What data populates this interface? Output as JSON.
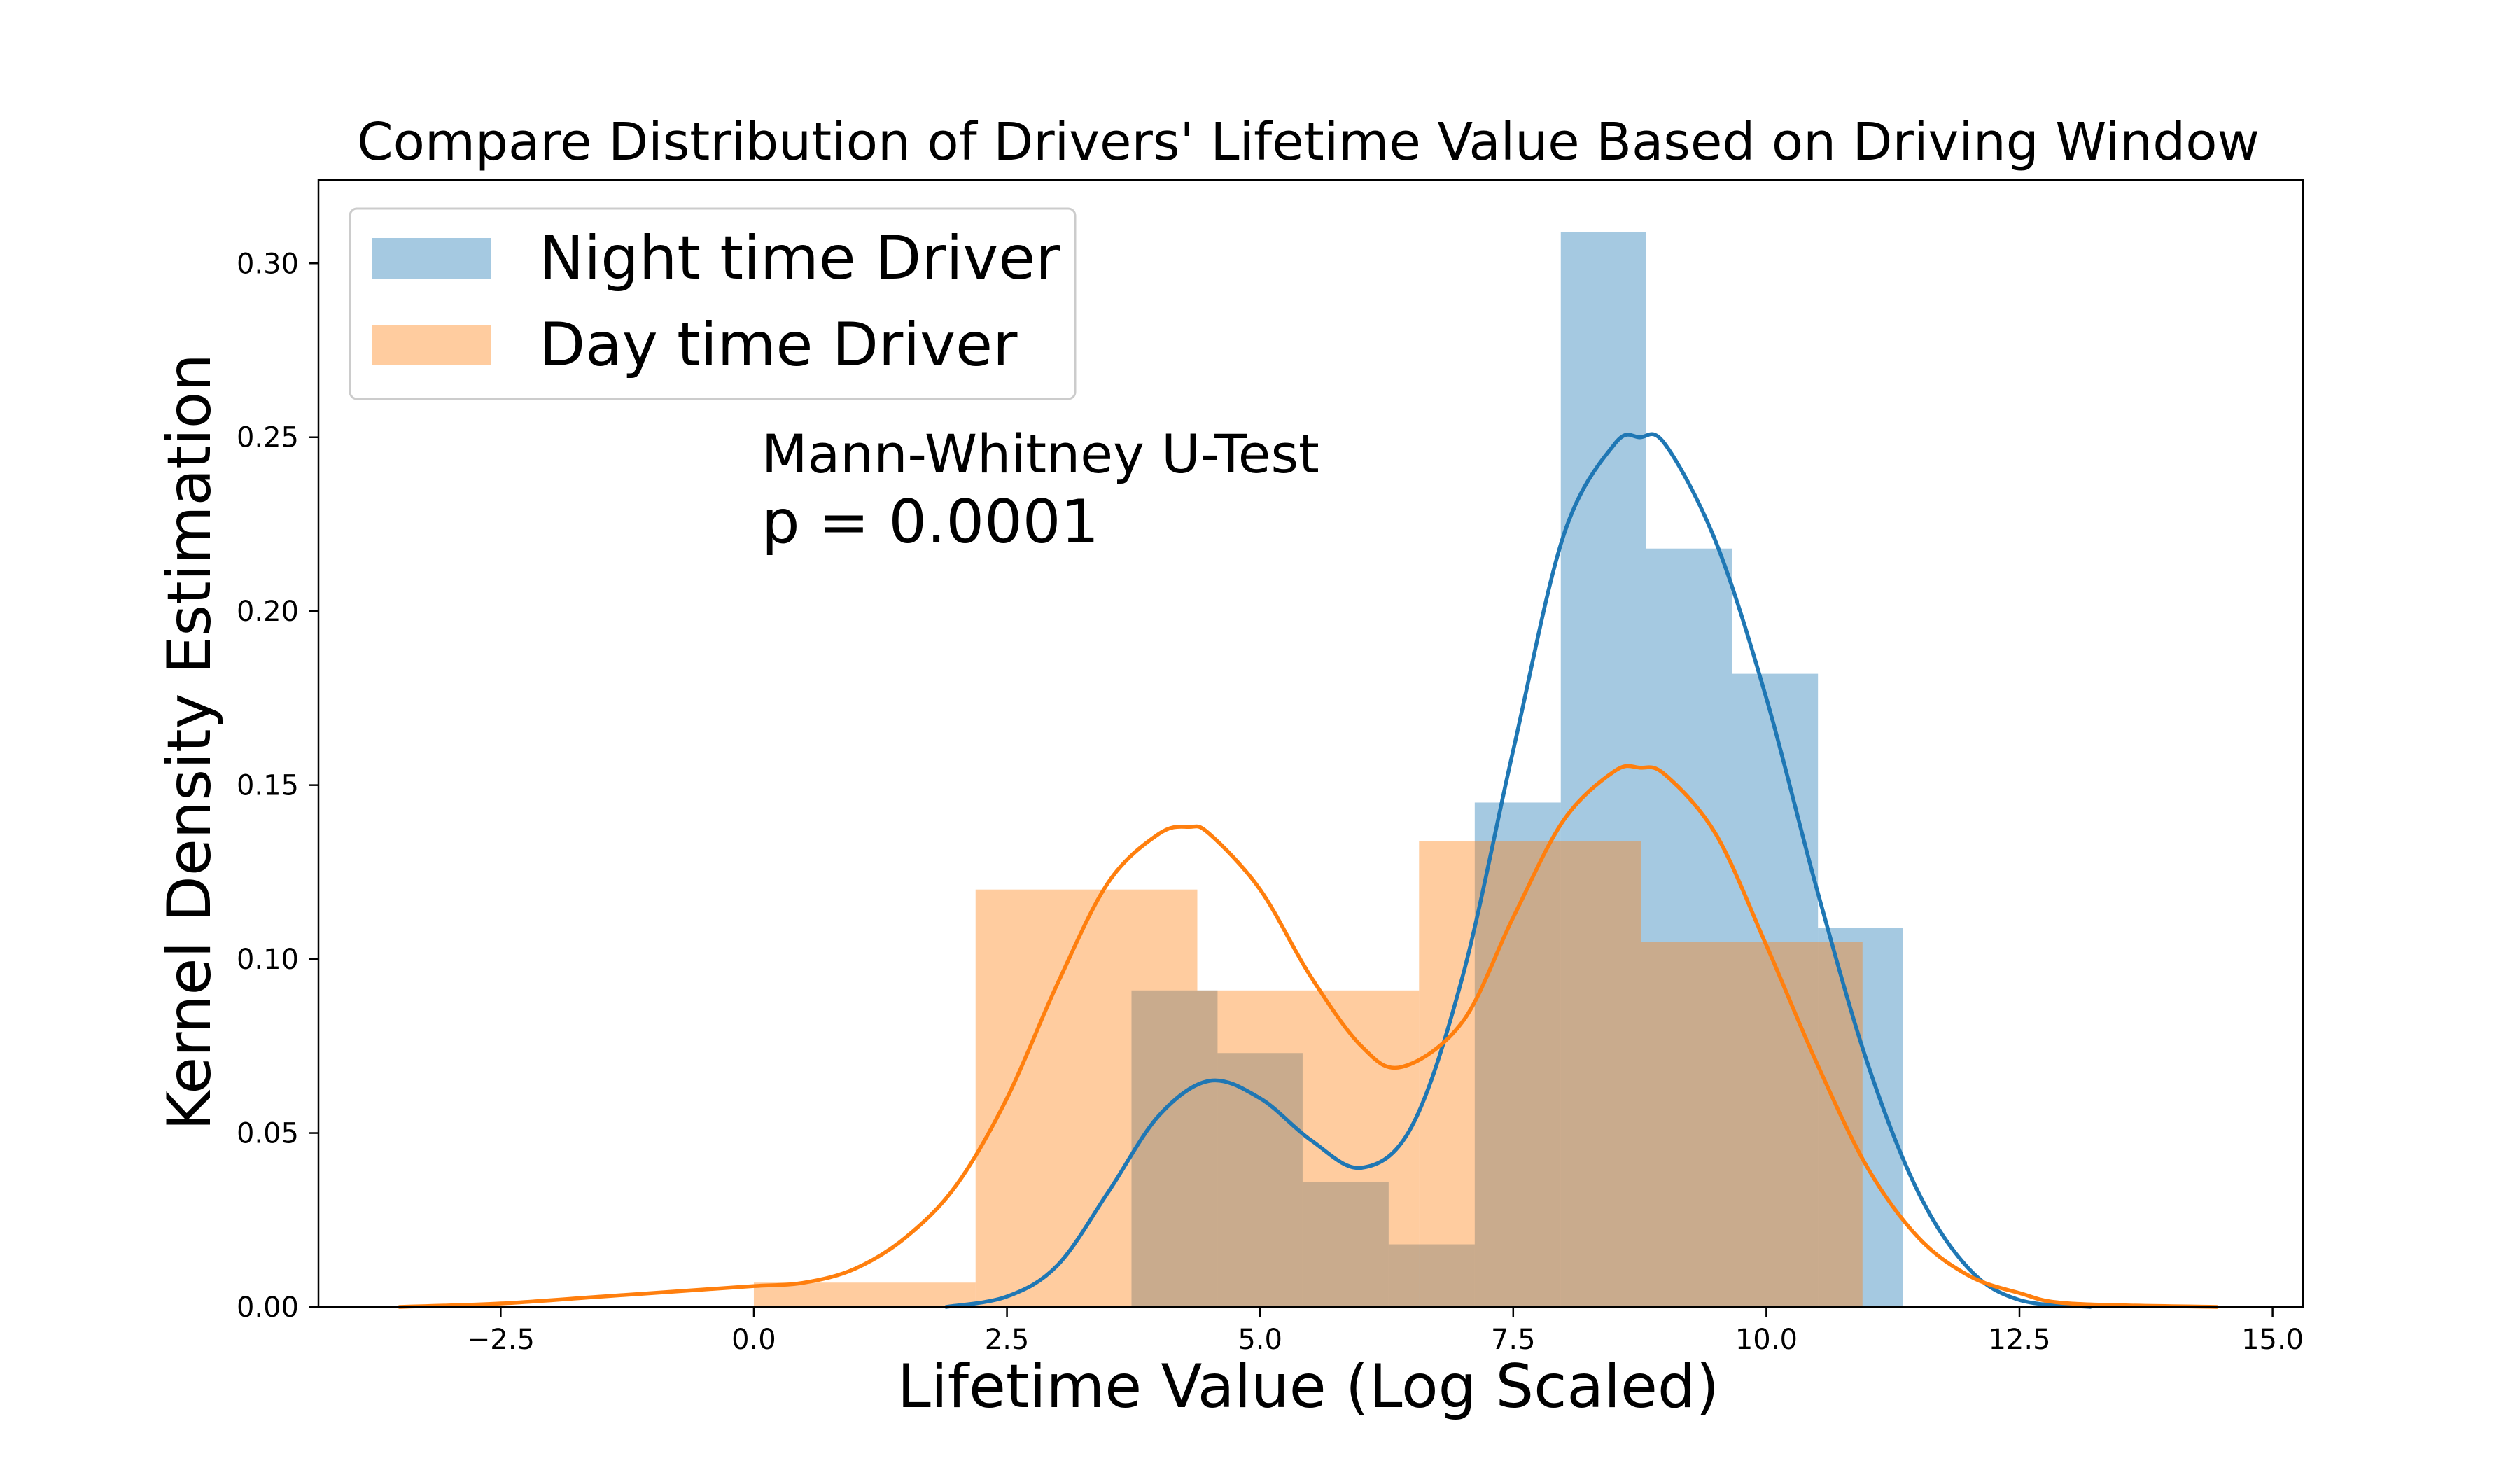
{
  "chart_data": {
    "type": "histogram-kde",
    "title": "Compare Distribution of Drivers' Lifetime Value Based on Driving Window",
    "xlabel": "Lifetime Value (Log Scaled)",
    "ylabel": "Kernel Density Estimation",
    "xlim": [
      -4.3,
      15.3
    ],
    "ylim": [
      0,
      0.324
    ],
    "xticks": [
      -2.5,
      0.0,
      2.5,
      5.0,
      7.5,
      10.0,
      12.5,
      15.0
    ],
    "xtick_labels": [
      "−2.5",
      "0.0",
      "2.5",
      "5.0",
      "7.5",
      "10.0",
      "12.5",
      "15.0"
    ],
    "yticks": [
      0.0,
      0.05,
      0.1,
      0.15,
      0.2,
      0.25,
      0.3
    ],
    "ytick_labels": [
      "0.00",
      "0.05",
      "0.10",
      "0.15",
      "0.20",
      "0.25",
      "0.30"
    ],
    "legend": {
      "placement": "top-left",
      "frame": true
    },
    "annotation": {
      "line1": "Mann-Whitney U-Test",
      "line2": "p = 0.0001"
    },
    "series": [
      {
        "name": "Night time Driver",
        "color": "#1f77b4",
        "hist_fill": "#a5c8e1",
        "bins": [
          {
            "x0": 3.73,
            "x1": 4.58,
            "h": 0.091
          },
          {
            "x0": 4.58,
            "x1": 5.42,
            "h": 0.073
          },
          {
            "x0": 5.42,
            "x1": 6.27,
            "h": 0.036
          },
          {
            "x0": 6.27,
            "x1": 7.12,
            "h": 0.018
          },
          {
            "x0": 7.12,
            "x1": 7.97,
            "h": 0.145
          },
          {
            "x0": 7.97,
            "x1": 8.81,
            "h": 0.309
          },
          {
            "x0": 8.81,
            "x1": 9.66,
            "h": 0.218
          },
          {
            "x0": 9.66,
            "x1": 10.51,
            "h": 0.182
          },
          {
            "x0": 10.51,
            "x1": 11.35,
            "h": 0.109
          }
        ],
        "kde": {
          "x": [
            1.9,
            2.5,
            3.0,
            3.5,
            4.0,
            4.5,
            5.0,
            5.5,
            6.0,
            6.5,
            7.0,
            7.5,
            8.0,
            8.5,
            8.75,
            9.0,
            9.5,
            10.0,
            10.5,
            11.0,
            11.5,
            12.0,
            12.5,
            13.2
          ],
          "y": [
            0.0,
            0.003,
            0.012,
            0.033,
            0.055,
            0.065,
            0.06,
            0.048,
            0.04,
            0.052,
            0.095,
            0.16,
            0.222,
            0.248,
            0.25,
            0.248,
            0.22,
            0.175,
            0.12,
            0.07,
            0.033,
            0.011,
            0.002,
            0.0
          ]
        }
      },
      {
        "name": "Day time Driver",
        "color": "#ff7f0e",
        "hist_fill": "#ffc796",
        "bins": [
          {
            "x0": 0.0,
            "x1": 2.19,
            "h": 0.007
          },
          {
            "x0": 2.19,
            "x1": 4.38,
            "h": 0.12
          },
          {
            "x0": 4.38,
            "x1": 6.57,
            "h": 0.091
          },
          {
            "x0": 6.57,
            "x1": 8.76,
            "h": 0.134
          },
          {
            "x0": 8.76,
            "x1": 10.95,
            "h": 0.105
          }
        ],
        "kde": {
          "x": [
            -3.5,
            -2.5,
            -1.5,
            -0.5,
            0.0,
            0.5,
            1.0,
            1.5,
            2.0,
            2.5,
            3.0,
            3.5,
            4.0,
            4.3,
            4.5,
            5.0,
            5.5,
            6.0,
            6.4,
            7.0,
            7.5,
            8.0,
            8.5,
            8.75,
            9.0,
            9.5,
            10.0,
            10.5,
            11.0,
            11.5,
            12.0,
            12.5,
            13.0,
            14.45
          ],
          "y": [
            0.0,
            0.001,
            0.003,
            0.005,
            0.006,
            0.007,
            0.011,
            0.02,
            0.035,
            0.06,
            0.093,
            0.122,
            0.136,
            0.138,
            0.136,
            0.12,
            0.095,
            0.075,
            0.069,
            0.082,
            0.112,
            0.14,
            0.154,
            0.155,
            0.153,
            0.136,
            0.104,
            0.07,
            0.04,
            0.02,
            0.009,
            0.004,
            0.001,
            0.0
          ]
        }
      }
    ]
  }
}
